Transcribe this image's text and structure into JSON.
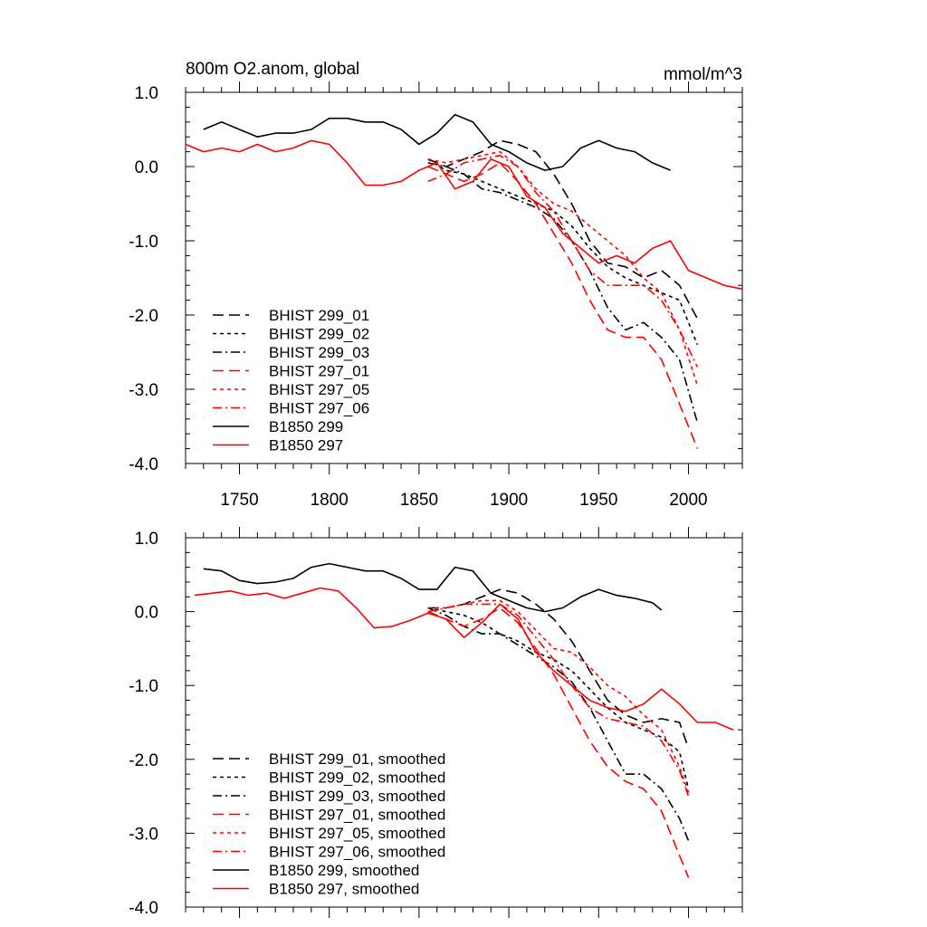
{
  "chart_data": [
    {
      "type": "line",
      "title": "800m O2.anom, global",
      "units": "mmol/m^3",
      "xlim": [
        1720,
        2030
      ],
      "ylim": [
        -4.0,
        1.0
      ],
      "x_ticks": [
        1750,
        1800,
        1850,
        1900,
        1950,
        2000
      ],
      "y_ticks": [
        1.0,
        0.0,
        -1.0,
        -2.0,
        -3.0,
        -4.0
      ],
      "y_tick_labels": [
        "1.0",
        "0.0",
        "-1.0",
        "-2.0",
        "-3.0",
        "-4.0"
      ],
      "x_tick_labels": [
        "1750",
        "1800",
        "1850",
        "1900",
        "1950",
        "2000"
      ],
      "grid": false,
      "legend_position": "bottom-left",
      "series": [
        {
          "name": "BHIST 299_01",
          "color": "#000000",
          "dash": "long-dash",
          "x": [
            1855,
            1865,
            1875,
            1885,
            1895,
            1905,
            1915,
            1925,
            1935,
            1945,
            1955,
            1965,
            1975,
            1985,
            1995,
            2005
          ],
          "y": [
            0.1,
            0.0,
            0.1,
            0.2,
            0.35,
            0.3,
            0.2,
            -0.1,
            -0.5,
            -1.0,
            -1.3,
            -1.35,
            -1.5,
            -1.4,
            -1.6,
            -2.05
          ]
        },
        {
          "name": "BHIST 299_02",
          "color": "#000000",
          "dash": "short-dash",
          "x": [
            1855,
            1865,
            1875,
            1885,
            1895,
            1905,
            1915,
            1925,
            1935,
            1945,
            1955,
            1965,
            1975,
            1985,
            1995,
            2005
          ],
          "y": [
            0.1,
            -0.05,
            -0.1,
            -0.2,
            -0.3,
            -0.4,
            -0.5,
            -0.6,
            -0.8,
            -1.1,
            -1.35,
            -1.5,
            -1.6,
            -1.7,
            -1.8,
            -2.4
          ]
        },
        {
          "name": "BHIST 299_03",
          "color": "#000000",
          "dash": "dash-dot",
          "x": [
            1855,
            1865,
            1875,
            1885,
            1895,
            1905,
            1915,
            1925,
            1935,
            1945,
            1955,
            1965,
            1975,
            1985,
            1995,
            2005
          ],
          "y": [
            0.05,
            0.0,
            -0.1,
            -0.3,
            -0.35,
            -0.45,
            -0.55,
            -0.7,
            -1.0,
            -1.4,
            -1.9,
            -2.2,
            -2.1,
            -2.3,
            -2.6,
            -3.45
          ]
        },
        {
          "name": "BHIST 297_01",
          "color": "#ff0000",
          "dash": "long-dash",
          "x": [
            1855,
            1865,
            1875,
            1885,
            1895,
            1905,
            1915,
            1925,
            1935,
            1945,
            1955,
            1965,
            1975,
            1985,
            1995,
            2005
          ],
          "y": [
            0.0,
            -0.1,
            -0.2,
            -0.1,
            0.05,
            -0.2,
            -0.5,
            -0.9,
            -1.3,
            -1.8,
            -2.2,
            -2.3,
            -2.3,
            -2.6,
            -3.2,
            -3.8
          ]
        },
        {
          "name": "BHIST 297_05",
          "color": "#ff0000",
          "dash": "short-dash",
          "x": [
            1855,
            1865,
            1875,
            1885,
            1895,
            1905,
            1915,
            1925,
            1935,
            1945,
            1955,
            1965,
            1975,
            1985,
            1995,
            2005
          ],
          "y": [
            0.1,
            0.05,
            0.1,
            0.15,
            0.2,
            0.0,
            -0.3,
            -0.5,
            -0.6,
            -0.8,
            -1.0,
            -1.2,
            -1.5,
            -1.7,
            -2.2,
            -2.95
          ]
        },
        {
          "name": "BHIST 297_06",
          "color": "#ff0000",
          "dash": "dash-dot",
          "x": [
            1855,
            1865,
            1875,
            1885,
            1895,
            1905,
            1915,
            1925,
            1935,
            1945,
            1955,
            1965,
            1975,
            1985,
            1995,
            2005
          ],
          "y": [
            -0.2,
            -0.1,
            0.05,
            0.1,
            0.15,
            0.0,
            -0.35,
            -0.6,
            -1.0,
            -1.4,
            -1.6,
            -1.6,
            -1.6,
            -1.8,
            -2.2,
            -2.7
          ]
        },
        {
          "name": "B1850 299",
          "color": "#000000",
          "dash": "solid",
          "x": [
            1730,
            1740,
            1750,
            1760,
            1770,
            1780,
            1790,
            1800,
            1810,
            1820,
            1830,
            1840,
            1850,
            1860,
            1870,
            1880,
            1890,
            1900,
            1910,
            1920,
            1930,
            1940,
            1950,
            1960,
            1970,
            1980,
            1990
          ],
          "y": [
            0.5,
            0.6,
            0.5,
            0.4,
            0.45,
            0.45,
            0.5,
            0.65,
            0.65,
            0.6,
            0.6,
            0.5,
            0.3,
            0.45,
            0.7,
            0.6,
            0.3,
            0.2,
            0.05,
            -0.05,
            0.0,
            0.25,
            0.35,
            0.25,
            0.2,
            0.05,
            -0.05
          ]
        },
        {
          "name": "B1850 297",
          "color": "#ff0000",
          "dash": "solid",
          "x": [
            1720,
            1730,
            1740,
            1750,
            1760,
            1770,
            1780,
            1790,
            1800,
            1810,
            1820,
            1830,
            1840,
            1850,
            1860,
            1870,
            1880,
            1890,
            1900,
            1910,
            1920,
            1930,
            1940,
            1950,
            1960,
            1970,
            1980,
            1990,
            2000,
            2010,
            2020,
            2030
          ],
          "y": [
            0.3,
            0.2,
            0.25,
            0.2,
            0.3,
            0.2,
            0.25,
            0.35,
            0.3,
            0.05,
            -0.25,
            -0.25,
            -0.2,
            -0.05,
            0.05,
            -0.3,
            -0.2,
            0.1,
            0.0,
            -0.4,
            -0.55,
            -0.9,
            -1.1,
            -1.3,
            -1.2,
            -1.3,
            -1.1,
            -1.0,
            -1.4,
            -1.5,
            -1.6,
            -1.65
          ]
        }
      ]
    },
    {
      "type": "line",
      "xlim": [
        1720,
        2030
      ],
      "ylim": [
        -4.0,
        1.0
      ],
      "x_ticks": [
        1750,
        1800,
        1850,
        1900,
        1950,
        2000
      ],
      "y_ticks": [
        1.0,
        0.0,
        -1.0,
        -2.0,
        -3.0,
        -4.0
      ],
      "y_tick_labels": [
        "1.0",
        "0.0",
        "-1.0",
        "-2.0",
        "-3.0",
        "-4.0"
      ],
      "grid": false,
      "legend_position": "bottom-left",
      "series": [
        {
          "name": "BHIST 299_01, smoothed",
          "color": "#000000",
          "dash": "long-dash",
          "x": [
            1855,
            1865,
            1875,
            1885,
            1895,
            1905,
            1915,
            1925,
            1935,
            1945,
            1955,
            1965,
            1975,
            1985,
            1995,
            2000
          ],
          "y": [
            0.05,
            0.05,
            0.1,
            0.2,
            0.3,
            0.25,
            0.1,
            -0.1,
            -0.4,
            -0.8,
            -1.2,
            -1.4,
            -1.5,
            -1.45,
            -1.5,
            -1.85
          ]
        },
        {
          "name": "BHIST 299_02, smoothed",
          "color": "#000000",
          "dash": "short-dash",
          "x": [
            1855,
            1865,
            1875,
            1885,
            1895,
            1905,
            1915,
            1925,
            1935,
            1945,
            1955,
            1965,
            1975,
            1985,
            1995,
            2000
          ],
          "y": [
            0.05,
            0.0,
            -0.05,
            -0.15,
            -0.3,
            -0.4,
            -0.55,
            -0.65,
            -0.8,
            -1.05,
            -1.3,
            -1.5,
            -1.6,
            -1.7,
            -1.9,
            -2.4
          ]
        },
        {
          "name": "BHIST 299_03, smoothed",
          "color": "#000000",
          "dash": "dash-dot",
          "x": [
            1855,
            1865,
            1875,
            1885,
            1895,
            1905,
            1915,
            1925,
            1935,
            1945,
            1955,
            1965,
            1975,
            1985,
            1995,
            2000
          ],
          "y": [
            0.05,
            -0.05,
            -0.2,
            -0.3,
            -0.3,
            -0.45,
            -0.6,
            -0.75,
            -0.95,
            -1.3,
            -1.75,
            -2.2,
            -2.2,
            -2.4,
            -2.8,
            -3.1
          ]
        },
        {
          "name": "BHIST 297_01, smoothed",
          "color": "#ff0000",
          "dash": "long-dash",
          "x": [
            1855,
            1865,
            1875,
            1885,
            1895,
            1905,
            1915,
            1925,
            1935,
            1945,
            1955,
            1965,
            1975,
            1985,
            1995,
            2000
          ],
          "y": [
            0.0,
            -0.1,
            -0.2,
            -0.1,
            0.05,
            -0.15,
            -0.5,
            -0.85,
            -1.3,
            -1.75,
            -2.1,
            -2.3,
            -2.4,
            -2.7,
            -3.3,
            -3.6
          ]
        },
        {
          "name": "BHIST 297_05, smoothed",
          "color": "#ff0000",
          "dash": "short-dash",
          "x": [
            1855,
            1865,
            1875,
            1885,
            1895,
            1905,
            1915,
            1925,
            1935,
            1945,
            1955,
            1965,
            1975,
            1985,
            1995,
            2000
          ],
          "y": [
            0.05,
            0.05,
            0.1,
            0.15,
            0.15,
            0.0,
            -0.25,
            -0.5,
            -0.55,
            -0.75,
            -1.0,
            -1.15,
            -1.4,
            -1.6,
            -2.1,
            -2.45
          ]
        },
        {
          "name": "BHIST 297_06, smoothed",
          "color": "#ff0000",
          "dash": "dash-dot",
          "x": [
            1855,
            1865,
            1875,
            1885,
            1895,
            1905,
            1915,
            1925,
            1935,
            1945,
            1955,
            1965,
            1975,
            1985,
            1995,
            2000
          ],
          "y": [
            0.0,
            0.05,
            0.1,
            0.1,
            0.1,
            -0.05,
            -0.35,
            -0.65,
            -1.0,
            -1.3,
            -1.45,
            -1.5,
            -1.55,
            -1.75,
            -2.15,
            -2.5
          ]
        },
        {
          "name": "B1850 299, smoothed",
          "color": "#000000",
          "dash": "solid",
          "x": [
            1730,
            1740,
            1750,
            1760,
            1770,
            1780,
            1790,
            1800,
            1810,
            1820,
            1830,
            1840,
            1850,
            1860,
            1870,
            1880,
            1890,
            1900,
            1910,
            1920,
            1930,
            1940,
            1950,
            1960,
            1970,
            1980,
            1985
          ],
          "y": [
            0.58,
            0.55,
            0.42,
            0.38,
            0.4,
            0.45,
            0.6,
            0.65,
            0.6,
            0.55,
            0.55,
            0.45,
            0.3,
            0.3,
            0.6,
            0.55,
            0.25,
            0.15,
            0.05,
            0.0,
            0.05,
            0.2,
            0.3,
            0.22,
            0.18,
            0.12,
            0.02
          ]
        },
        {
          "name": "B1850 297, smoothed",
          "color": "#ff0000",
          "dash": "solid",
          "x": [
            1725,
            1735,
            1745,
            1755,
            1765,
            1775,
            1785,
            1795,
            1805,
            1815,
            1825,
            1835,
            1845,
            1855,
            1865,
            1875,
            1885,
            1895,
            1905,
            1915,
            1925,
            1935,
            1945,
            1955,
            1965,
            1975,
            1985,
            1995,
            2005,
            2015,
            2025
          ],
          "y": [
            0.22,
            0.25,
            0.28,
            0.22,
            0.25,
            0.18,
            0.25,
            0.32,
            0.28,
            0.05,
            -0.22,
            -0.2,
            -0.12,
            -0.02,
            -0.1,
            -0.35,
            -0.15,
            0.1,
            -0.1,
            -0.55,
            -0.8,
            -1.0,
            -1.2,
            -1.3,
            -1.35,
            -1.25,
            -1.05,
            -1.25,
            -1.5,
            -1.5,
            -1.6
          ]
        }
      ]
    }
  ]
}
